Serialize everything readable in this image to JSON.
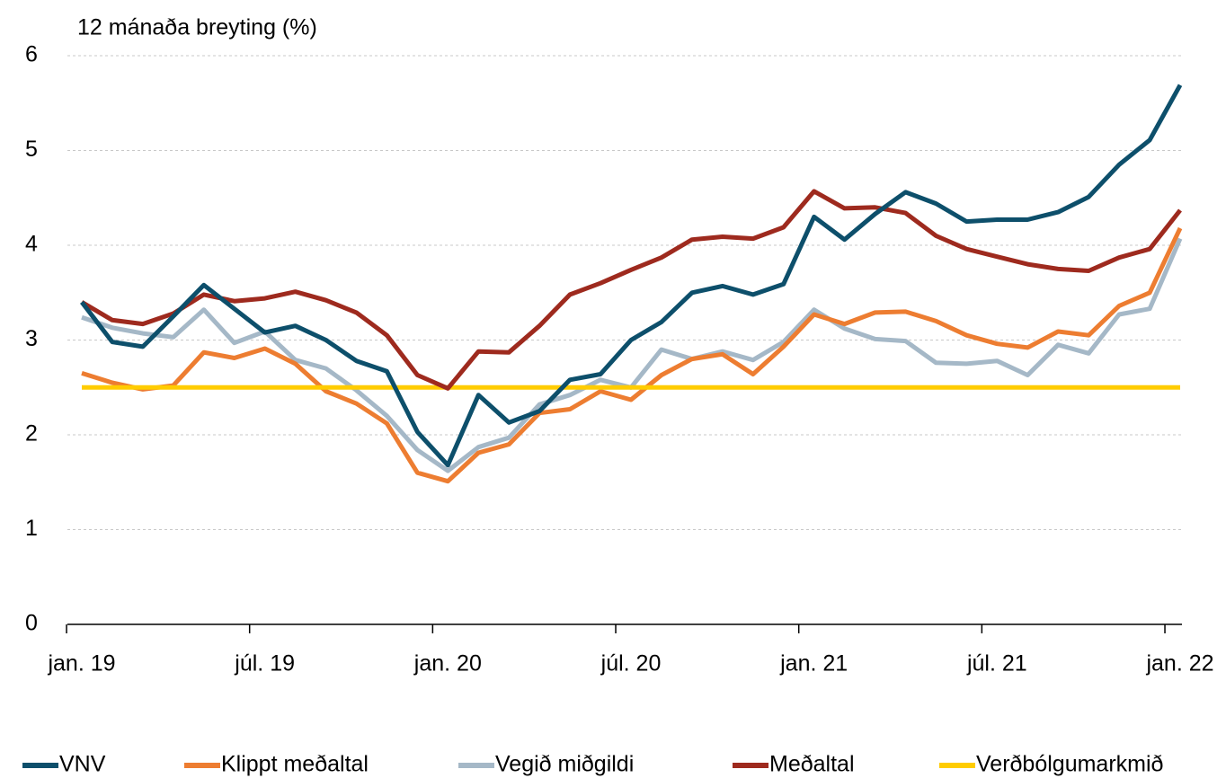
{
  "chart_data": {
    "type": "line",
    "ylabel": "12 mánaða breyting (%)",
    "categories": [
      "jan. 19",
      null,
      null,
      null,
      null,
      null,
      "júl. 19",
      null,
      null,
      null,
      null,
      null,
      "jan. 20",
      null,
      null,
      null,
      null,
      null,
      "júl. 20",
      null,
      null,
      null,
      null,
      null,
      "jan. 21",
      null,
      null,
      null,
      null,
      null,
      "júl. 21",
      null,
      null,
      null,
      null,
      null,
      "jan. 22"
    ],
    "ylim": [
      0,
      6
    ],
    "yticks": [
      0,
      1,
      2,
      3,
      4,
      5,
      6
    ],
    "grid": true,
    "legend": "bottom",
    "series": [
      {
        "name": "VNV",
        "color": "#0d4f6b",
        "values": [
          3.4,
          2.98,
          2.93,
          3.25,
          3.58,
          3.33,
          3.08,
          3.15,
          3.0,
          2.78,
          2.67,
          2.03,
          1.68,
          2.42,
          2.13,
          2.25,
          2.58,
          2.64,
          3.0,
          3.19,
          3.5,
          3.57,
          3.48,
          3.59,
          4.3,
          4.06,
          4.33,
          4.56,
          4.44,
          4.25,
          4.27,
          4.27,
          4.35,
          4.51,
          4.85,
          5.11,
          5.69
        ]
      },
      {
        "name": "Klippt meðaltal",
        "color": "#ed7d31",
        "values": [
          2.65,
          2.55,
          2.48,
          2.52,
          2.87,
          2.81,
          2.91,
          2.75,
          2.46,
          2.33,
          2.12,
          1.6,
          1.51,
          1.81,
          1.9,
          2.23,
          2.27,
          2.46,
          2.37,
          2.63,
          2.8,
          2.85,
          2.64,
          2.93,
          3.27,
          3.17,
          3.29,
          3.3,
          3.2,
          3.05,
          2.96,
          2.92,
          3.09,
          3.05,
          3.36,
          3.5,
          4.18
        ]
      },
      {
        "name": "Vegið miðgildi",
        "color": "#a5b8c7",
        "values": [
          3.24,
          3.13,
          3.07,
          3.03,
          3.32,
          2.97,
          3.09,
          2.79,
          2.7,
          2.47,
          2.2,
          1.84,
          1.62,
          1.87,
          1.97,
          2.32,
          2.42,
          2.58,
          2.5,
          2.9,
          2.8,
          2.88,
          2.79,
          2.98,
          3.32,
          3.12,
          3.01,
          2.99,
          2.76,
          2.75,
          2.78,
          2.63,
          2.95,
          2.86,
          3.27,
          3.33,
          4.07
        ]
      },
      {
        "name": "Meðaltal",
        "color": "#9e2a1e",
        "values": [
          3.4,
          3.21,
          3.17,
          3.28,
          3.48,
          3.41,
          3.44,
          3.51,
          3.42,
          3.29,
          3.05,
          2.63,
          2.49,
          2.88,
          2.87,
          3.15,
          3.48,
          3.6,
          3.74,
          3.87,
          4.06,
          4.09,
          4.07,
          4.19,
          4.57,
          4.39,
          4.4,
          4.34,
          4.1,
          3.96,
          3.88,
          3.8,
          3.75,
          3.73,
          3.87,
          3.96,
          4.37
        ]
      },
      {
        "name": "Verðbólgumarkmið",
        "color": "#ffcc00",
        "values": [
          2.5,
          2.5,
          2.5,
          2.5,
          2.5,
          2.5,
          2.5,
          2.5,
          2.5,
          2.5,
          2.5,
          2.5,
          2.5,
          2.5,
          2.5,
          2.5,
          2.5,
          2.5,
          2.5,
          2.5,
          2.5,
          2.5,
          2.5,
          2.5,
          2.5,
          2.5,
          2.5,
          2.5,
          2.5,
          2.5,
          2.5,
          2.5,
          2.5,
          2.5,
          2.5,
          2.5,
          2.5
        ]
      }
    ]
  }
}
